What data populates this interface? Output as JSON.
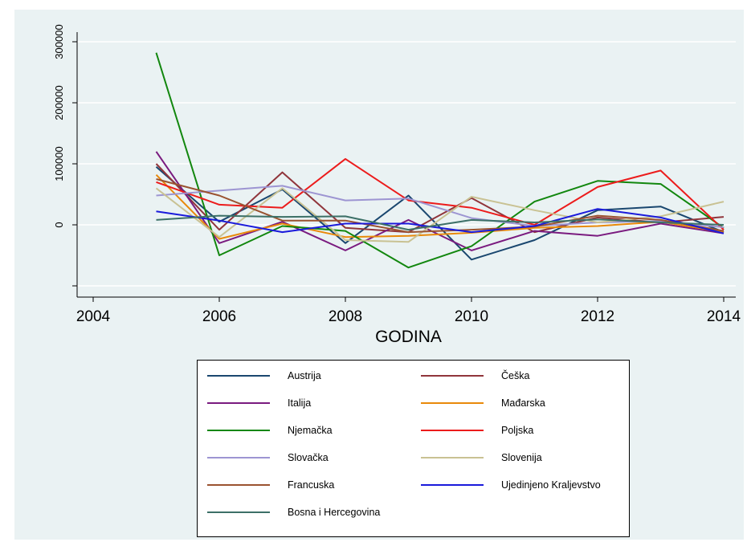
{
  "chart_data": {
    "type": "line",
    "title": "",
    "xlabel": "GODINA",
    "ylabel": "",
    "x": [
      2005,
      2006,
      2007,
      2008,
      2009,
      2010,
      2011,
      2012,
      2013,
      2014
    ],
    "xlim": [
      2004,
      2014
    ],
    "ylim": [
      -100000,
      300000
    ],
    "x_ticks": [
      "2004",
      "2006",
      "2008",
      "2010",
      "2012",
      "2014"
    ],
    "y_ticks": [
      "300000",
      "200000",
      "100000",
      "0"
    ],
    "grid": "horizontal",
    "legend_position": "bottom",
    "series": [
      {
        "name": "Austrija",
        "color": "#1a476f",
        "values": [
          95000,
          5000,
          58000,
          -30000,
          48000,
          -57000,
          -25000,
          24000,
          30000,
          -12000
        ]
      },
      {
        "name": "Češka",
        "color": "#90353b",
        "values": [
          100000,
          -8000,
          86000,
          -5000,
          -12000,
          44000,
          -12000,
          12000,
          4000,
          13000
        ]
      },
      {
        "name": "Italija",
        "color": "#7a1b7f",
        "values": [
          120000,
          -30000,
          5000,
          -42000,
          8000,
          -42000,
          -10000,
          -18000,
          2000,
          -14000
        ]
      },
      {
        "name": "Mađarska",
        "color": "#e8890a",
        "values": [
          82000,
          -23000,
          2000,
          -20000,
          -18000,
          -13000,
          -5000,
          -2000,
          5000,
          -12000
        ]
      },
      {
        "name": "Njemačka",
        "color": "#12870e",
        "values": [
          282000,
          -50000,
          -2000,
          -10000,
          -70000,
          -35000,
          38000,
          72000,
          67000,
          -5000
        ]
      },
      {
        "name": "Poljska",
        "color": "#ec1b1b",
        "values": [
          70000,
          33000,
          28000,
          108000,
          40000,
          28000,
          0,
          62000,
          89000,
          -8000
        ]
      },
      {
        "name": "Slovačka",
        "color": "#9d95d2",
        "values": [
          48000,
          56000,
          64000,
          40000,
          43000,
          11000,
          -2000,
          4000,
          6000,
          -4000
        ]
      },
      {
        "name": "Slovenija",
        "color": "#c9c293",
        "values": [
          60000,
          -20000,
          60000,
          -25000,
          -28000,
          46000,
          24000,
          4000,
          14000,
          38000
        ]
      },
      {
        "name": "Francuska",
        "color": "#9a5230",
        "values": [
          75000,
          48000,
          7000,
          7000,
          -12000,
          -8000,
          -3000,
          15000,
          8000,
          -10000
        ]
      },
      {
        "name": "Ujedinjeno Kraljevstvo",
        "color": "#1a1adb",
        "values": [
          22000,
          7000,
          -12000,
          2000,
          2000,
          -12000,
          -2000,
          26000,
          12000,
          -14000
        ]
      },
      {
        "name": "Bosna i Hercegovina",
        "color": "#3c7067",
        "values": [
          8000,
          15000,
          13000,
          14000,
          -8000,
          8000,
          4000,
          9000,
          4000,
          0
        ]
      }
    ]
  }
}
